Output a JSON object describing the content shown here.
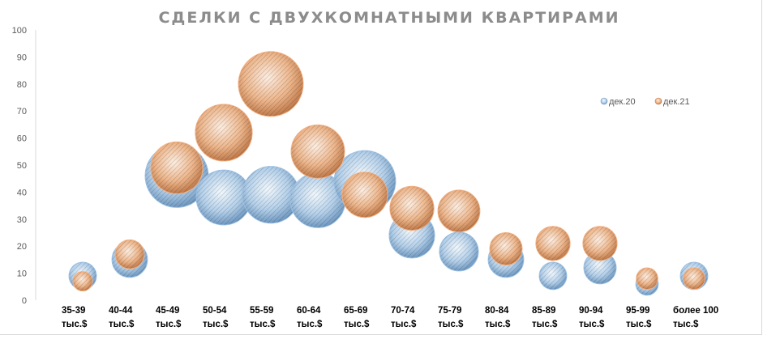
{
  "chart_data": {
    "type": "bubble",
    "title": "СДЕЛКИ С ДВУХКОМНАТНЫМИ КВАРТИРАМИ",
    "categories": [
      [
        "35-39",
        "тыс.$"
      ],
      [
        "40-44",
        "тыс.$"
      ],
      [
        "45-49",
        "тыс.$"
      ],
      [
        "50-54",
        "тыс.$"
      ],
      [
        "55-59",
        "тыс.$"
      ],
      [
        "60-64",
        "тыс.$"
      ],
      [
        "65-69",
        "тыс.$"
      ],
      [
        "70-74",
        "тыс.$"
      ],
      [
        "75-79",
        "тыс.$"
      ],
      [
        "80-84",
        "тыс.$"
      ],
      [
        "85-89",
        "тыс.$"
      ],
      [
        "90-94",
        "тыс.$"
      ],
      [
        "95-99",
        "тыс.$"
      ],
      [
        "более 100",
        "тыс.$"
      ]
    ],
    "ylim": [
      0,
      100
    ],
    "yticks": [
      0,
      10,
      20,
      30,
      40,
      50,
      60,
      70,
      80,
      90,
      100
    ],
    "grid": false,
    "legend_position": "top-right",
    "series": [
      {
        "name": "дек.20",
        "color": "#9dc3e6",
        "values": [
          9,
          15,
          46,
          38,
          39,
          37,
          44,
          24,
          18,
          15,
          9,
          12,
          6,
          9
        ],
        "sizes": [
          18,
          30,
          95,
          72,
          77,
          72,
          90,
          49,
          36,
          30,
          18,
          25,
          12,
          18
        ]
      },
      {
        "name": "дек.21",
        "color": "#f4b183",
        "values": [
          7,
          17,
          49,
          62,
          80,
          55,
          39,
          34,
          33,
          19,
          21,
          21,
          8,
          8
        ],
        "sizes": [
          9,
          20,
          64,
          77,
          100,
          68,
          49,
          46,
          42,
          25,
          28,
          28,
          11,
          11
        ]
      }
    ]
  }
}
